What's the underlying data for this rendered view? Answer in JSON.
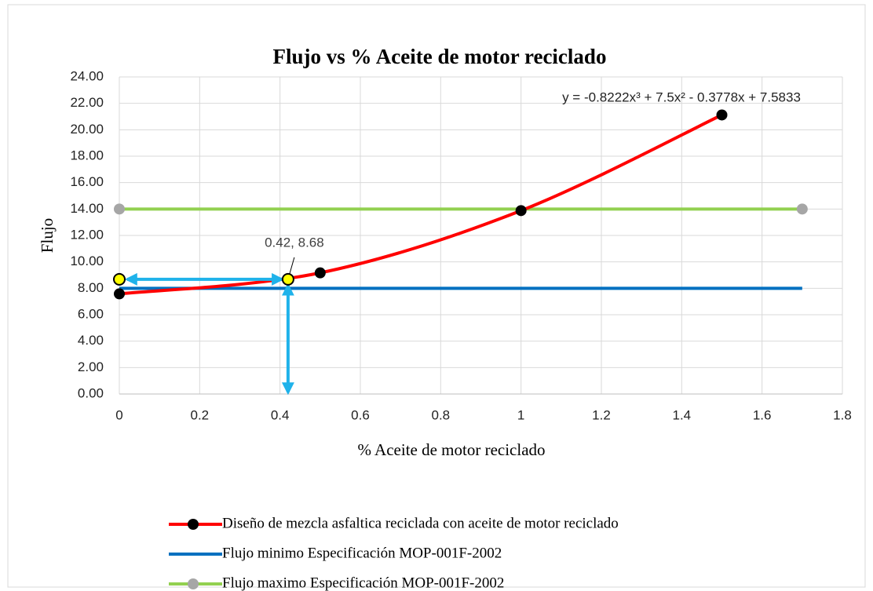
{
  "chart_data": {
    "type": "line",
    "title": "Flujo vs % Aceite de motor reciclado",
    "xlabel": "% Aceite de motor reciclado",
    "ylabel": "Flujo",
    "xlim": [
      0,
      1.8
    ],
    "xticks": [
      0,
      0.2,
      0.4,
      0.6,
      0.8,
      1,
      1.2,
      1.4,
      1.6,
      1.8
    ],
    "ylim": [
      0,
      24
    ],
    "yticks": [
      {
        "value": 0,
        "label": "0.00"
      },
      {
        "value": 2,
        "label": "2.00"
      },
      {
        "value": 4,
        "label": "4.00"
      },
      {
        "value": 6,
        "label": "6.00"
      },
      {
        "value": 8,
        "label": "8.00"
      },
      {
        "value": 10,
        "label": "10.00"
      },
      {
        "value": 12,
        "label": "12.00"
      },
      {
        "value": 14,
        "label": "14.00"
      },
      {
        "value": 16,
        "label": "16.00"
      },
      {
        "value": 18,
        "label": "18.00"
      },
      {
        "value": 20,
        "label": "20.00"
      },
      {
        "value": 22,
        "label": "22.00"
      },
      {
        "value": 24,
        "label": "24.00"
      }
    ],
    "grid": true,
    "series": [
      {
        "name": "Diseño de mezcla asfaltica reciclada con aceite de motor reciclado",
        "color": "#ff0000",
        "marker_color": "#000000",
        "smooth": true,
        "x": [
          0,
          0.5,
          1,
          1.5
        ],
        "values": [
          7.58,
          9.17,
          13.88,
          21.12
        ]
      },
      {
        "name": "Flujo minimo Especificación MOP-001F-2002",
        "color": "#0070c0",
        "x": [
          0,
          1.7
        ],
        "values": [
          8,
          8
        ]
      },
      {
        "name": "Flujo maximo Especificación MOP-001F-2002",
        "color": "#92d050",
        "marker_color": "#a6a6a6",
        "x": [
          0,
          1.7
        ],
        "values": [
          14,
          14
        ]
      }
    ],
    "equation": "y = -0.8222x³ + 7.5x² - 0.3778x + 7.5833",
    "highlight": {
      "x": 0.42,
      "y": 8.68,
      "label": "0.42, 8.68",
      "color": "#ffff00",
      "arrow_color": "#1fb2ea"
    },
    "legend": "bottom"
  }
}
